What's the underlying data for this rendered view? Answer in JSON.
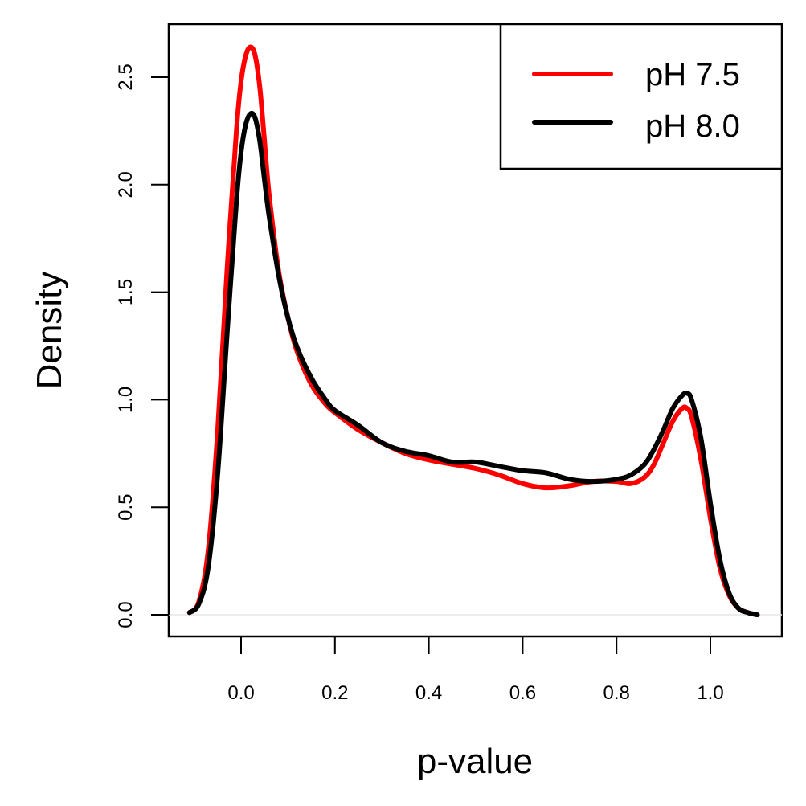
{
  "chart_data": {
    "type": "line",
    "title": "",
    "xlabel": "p-value",
    "ylabel": "Density",
    "xlim": [
      -0.16,
      1.16
    ],
    "ylim": [
      -0.1,
      2.75
    ],
    "x_ticks": [
      0.0,
      0.2,
      0.4,
      0.6,
      0.8,
      1.0
    ],
    "x_tick_labels": [
      "0.0",
      "0.2",
      "0.4",
      "0.6",
      "0.8",
      "1.0"
    ],
    "y_ticks": [
      0.0,
      0.5,
      1.0,
      1.5,
      2.0,
      2.5
    ],
    "y_tick_labels": [
      "0.0",
      "0.5",
      "1.0",
      "1.5",
      "2.0",
      "2.5"
    ],
    "grid": false,
    "legend_position": "top-right",
    "series": [
      {
        "name": "pH 7.5",
        "color": "#ff0000",
        "x": [
          -0.11,
          -0.09,
          -0.07,
          -0.05,
          -0.03,
          -0.01,
          0.0,
          0.01,
          0.02,
          0.03,
          0.04,
          0.05,
          0.06,
          0.08,
          0.1,
          0.12,
          0.15,
          0.18,
          0.2,
          0.25,
          0.3,
          0.35,
          0.4,
          0.45,
          0.5,
          0.55,
          0.6,
          0.65,
          0.7,
          0.75,
          0.8,
          0.83,
          0.86,
          0.88,
          0.9,
          0.92,
          0.94,
          0.95,
          0.96,
          0.98,
          1.0,
          1.02,
          1.04,
          1.06,
          1.08,
          1.1
        ],
        "y": [
          0.01,
          0.06,
          0.3,
          0.85,
          1.6,
          2.25,
          2.48,
          2.6,
          2.64,
          2.6,
          2.45,
          2.2,
          1.95,
          1.6,
          1.38,
          1.22,
          1.07,
          0.98,
          0.94,
          0.86,
          0.8,
          0.75,
          0.72,
          0.7,
          0.68,
          0.65,
          0.61,
          0.59,
          0.6,
          0.62,
          0.62,
          0.61,
          0.64,
          0.7,
          0.8,
          0.9,
          0.96,
          0.96,
          0.92,
          0.72,
          0.45,
          0.22,
          0.09,
          0.03,
          0.01,
          0.0
        ]
      },
      {
        "name": "pH 8.0",
        "color": "#000000",
        "x": [
          -0.11,
          -0.09,
          -0.07,
          -0.05,
          -0.03,
          -0.01,
          0.0,
          0.01,
          0.02,
          0.03,
          0.04,
          0.05,
          0.06,
          0.08,
          0.1,
          0.12,
          0.15,
          0.18,
          0.2,
          0.25,
          0.3,
          0.35,
          0.4,
          0.45,
          0.5,
          0.55,
          0.6,
          0.65,
          0.7,
          0.75,
          0.8,
          0.83,
          0.86,
          0.88,
          0.9,
          0.92,
          0.94,
          0.95,
          0.96,
          0.98,
          1.0,
          1.02,
          1.04,
          1.06,
          1.08,
          1.1
        ],
        "y": [
          0.01,
          0.05,
          0.22,
          0.65,
          1.3,
          1.92,
          2.15,
          2.28,
          2.33,
          2.31,
          2.2,
          2.02,
          1.85,
          1.58,
          1.38,
          1.24,
          1.1,
          1.0,
          0.95,
          0.88,
          0.8,
          0.76,
          0.74,
          0.71,
          0.71,
          0.69,
          0.67,
          0.66,
          0.63,
          0.62,
          0.63,
          0.65,
          0.7,
          0.77,
          0.86,
          0.96,
          1.02,
          1.03,
          1.0,
          0.82,
          0.52,
          0.26,
          0.1,
          0.03,
          0.01,
          0.0
        ]
      }
    ]
  }
}
